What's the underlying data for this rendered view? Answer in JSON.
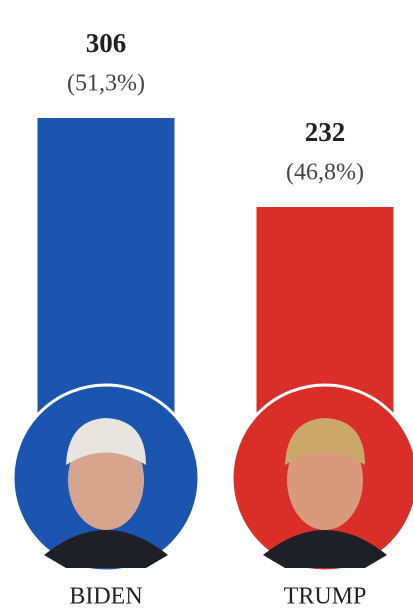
{
  "chart_data": {
    "type": "bar",
    "categories": [
      "BIDEN",
      "TRUMP"
    ],
    "values": [
      306,
      232
    ],
    "percent_labels": [
      "(51,3%)",
      "(46,8%)"
    ],
    "colors": [
      "#1b55b0",
      "#da2f29"
    ]
  }
}
